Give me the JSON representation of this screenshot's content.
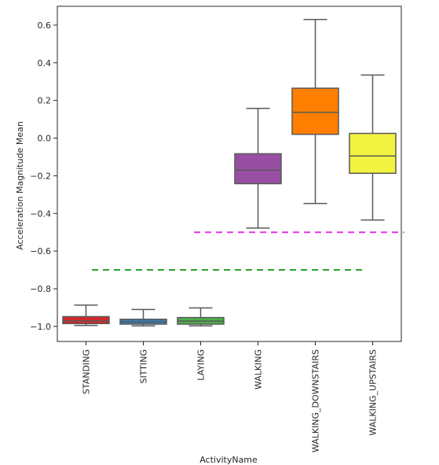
{
  "chart_data": {
    "type": "box",
    "title": "",
    "xlabel": "ActivityName",
    "ylabel": "Acceleration Magnitude Mean",
    "ylim": [
      -1.08,
      0.7
    ],
    "yticks": [
      0.6,
      0.4,
      0.2,
      0.0,
      -0.2,
      -0.4,
      -0.6,
      -0.8,
      -1.0
    ],
    "ytick_labels": [
      "0.6",
      "0.4",
      "0.2",
      "0.0",
      "−0.2",
      "−0.4",
      "−0.6",
      "−0.8",
      "−1.0"
    ],
    "grid": false,
    "categories": [
      "STANDING",
      "SITTING",
      "LAYING",
      "WALKING",
      "WALKING_DOWNSTAIRS",
      "WALKING_UPSTAIRS"
    ],
    "boxes": [
      {
        "category": "STANDING",
        "whisker_low": -0.995,
        "q1": -0.985,
        "median": -0.97,
        "q3": -0.948,
        "whisker_high": -0.887,
        "color": "#d62728"
      },
      {
        "category": "SITTING",
        "whisker_low": -0.997,
        "q1": -0.988,
        "median": -0.976,
        "q3": -0.962,
        "whisker_high": -0.91,
        "color": "#377eb8"
      },
      {
        "category": "LAYING",
        "whisker_low": -0.997,
        "q1": -0.988,
        "median": -0.972,
        "q3": -0.953,
        "whisker_high": -0.902,
        "color": "#4daf4a"
      },
      {
        "category": "WALKING",
        "whisker_low": -0.478,
        "q1": -0.242,
        "median": -0.17,
        "q3": -0.083,
        "whisker_high": 0.158,
        "color": "#984ea3"
      },
      {
        "category": "WALKING_DOWNSTAIRS",
        "whisker_low": -0.347,
        "q1": 0.02,
        "median": 0.137,
        "q3": 0.265,
        "whisker_high": 0.63,
        "color": "#ff7f00"
      },
      {
        "category": "WALKING_UPSTAIRS",
        "whisker_low": -0.435,
        "q1": -0.187,
        "median": -0.095,
        "q3": 0.025,
        "whisker_high": 0.335,
        "color": "#f2f240"
      }
    ],
    "reference_lines": [
      {
        "y": -0.7,
        "from_category": 0,
        "to_category": 5,
        "color": "#2ca02c",
        "style": "dashed"
      },
      {
        "y": -0.5,
        "from_category": 2,
        "to_category": 5,
        "color": "#e633e6",
        "style": "dashed"
      }
    ]
  }
}
